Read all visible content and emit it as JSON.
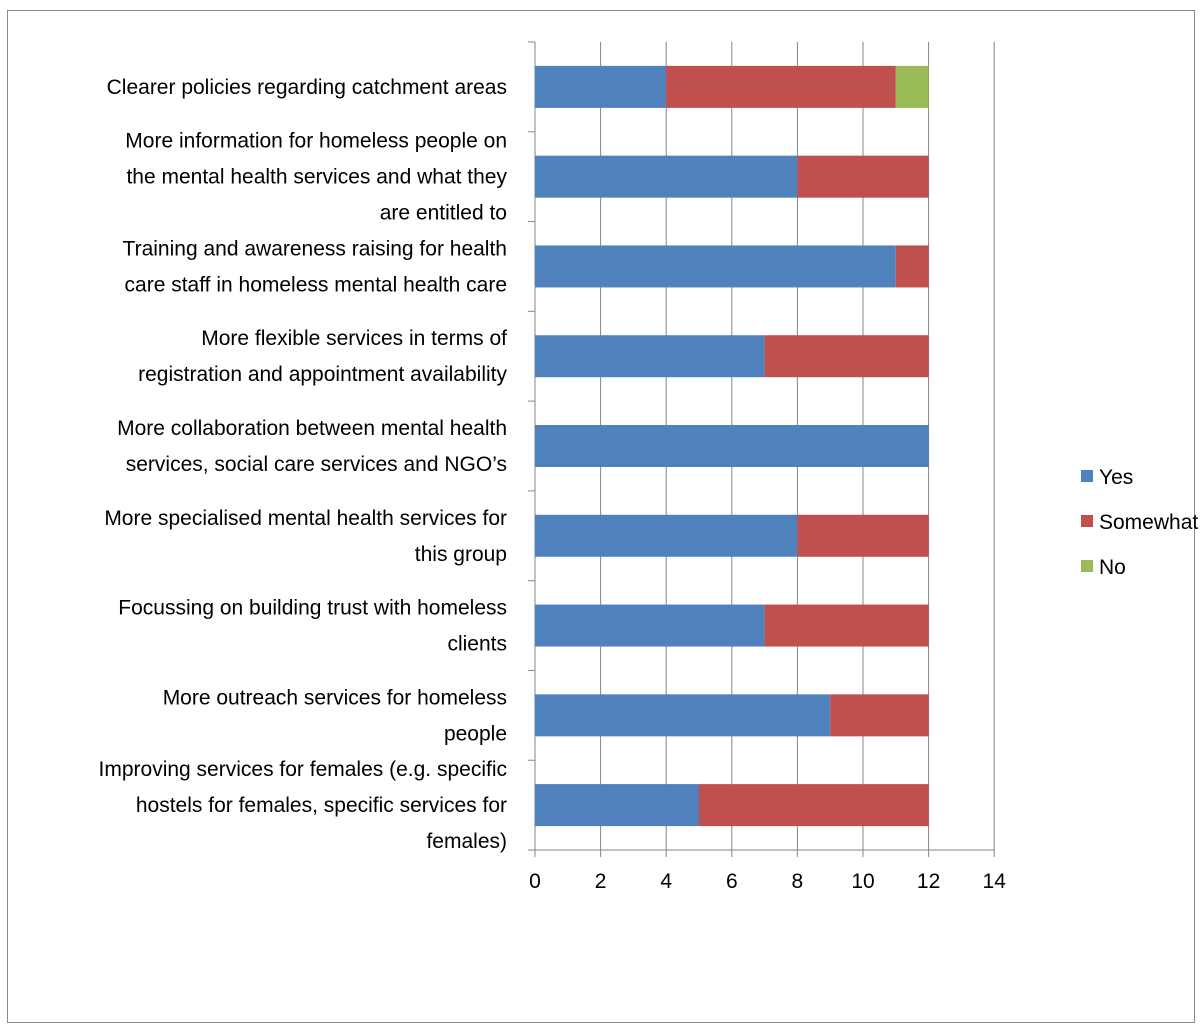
{
  "chart_data": {
    "type": "bar",
    "orientation": "horizontal",
    "stacked": true,
    "categories": [
      "Clearer policies regarding catchment areas",
      "More information for homeless people on the mental health services and what they are entitled to",
      "Training and awareness raising for health care staff in homeless mental health care",
      "More flexible services in terms of registration and appointment availability",
      "More collaboration between mental health services, social care services and NGO’s",
      "More specialised mental health services for this group",
      "Focussing on building trust with homeless clients",
      "More outreach services for homeless people",
      "Improving services for females (e.g. specific hostels for females, specific services for females)"
    ],
    "category_lines": [
      [
        "Clearer policies regarding catchment areas"
      ],
      [
        "More information for homeless people on",
        "the mental health services and what they",
        "are entitled to"
      ],
      [
        "Training and awareness raising for health",
        "care staff in homeless mental health care"
      ],
      [
        "More flexible services in terms of",
        "registration and appointment availability"
      ],
      [
        "More collaboration between mental health",
        "services, social care services and NGO’s"
      ],
      [
        "More specialised mental health services for",
        "this group"
      ],
      [
        "Focussing on building trust with homeless",
        "clients"
      ],
      [
        "More outreach services for homeless",
        "people"
      ],
      [
        "Improving services for females (e.g. specific",
        "hostels for females, specific services for",
        "females)"
      ]
    ],
    "series": [
      {
        "name": "Yes",
        "color": "#4F81BD",
        "values": [
          4,
          8,
          11,
          7,
          12,
          8,
          7,
          9,
          5
        ]
      },
      {
        "name": "Somewhat",
        "color": "#C0504D",
        "values": [
          7,
          4,
          1,
          5,
          0,
          4,
          5,
          3,
          7
        ]
      },
      {
        "name": "No",
        "color": "#9BBB59",
        "values": [
          1,
          0,
          0,
          0,
          0,
          0,
          0,
          0,
          0
        ]
      }
    ],
    "xlim": [
      0,
      14
    ],
    "x_ticks": [
      "0",
      "2",
      "4",
      "6",
      "8",
      "10",
      "12",
      "14"
    ],
    "x_tick_values": [
      0,
      2,
      4,
      6,
      8,
      10,
      12,
      14
    ],
    "grid": true,
    "legend_position": "right",
    "title": "",
    "xlabel": "",
    "ylabel": ""
  }
}
